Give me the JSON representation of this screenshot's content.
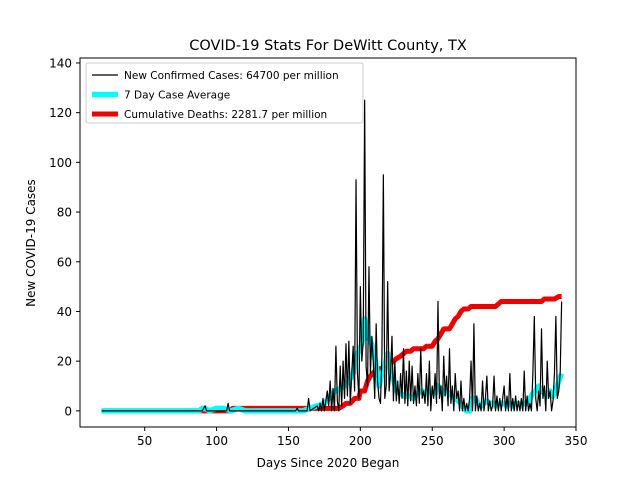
{
  "chart_data": {
    "type": "line",
    "title": "COVID-19 Stats For DeWitt County, TX",
    "xlabel": "Days Since 2020 Began",
    "ylabel": "New COVID-19 Cases",
    "xlim": [
      5,
      350
    ],
    "ylim": [
      -6.5,
      142
    ],
    "x_ticks": [
      50,
      100,
      150,
      200,
      250,
      300,
      350
    ],
    "y_ticks": [
      0,
      20,
      40,
      60,
      80,
      100,
      120,
      140
    ],
    "grid": false,
    "legend_position": "upper-left",
    "series": [
      {
        "name": "New Confirmed Cases: 64700 per million",
        "color": "#000000",
        "points": [
          [
            20,
            0
          ],
          [
            90,
            0
          ],
          [
            92,
            2
          ],
          [
            93,
            0
          ],
          [
            107,
            0
          ],
          [
            108,
            3
          ],
          [
            109,
            0
          ],
          [
            110,
            0
          ],
          [
            155,
            0
          ],
          [
            156,
            1
          ],
          [
            157,
            0
          ],
          [
            163,
            0
          ],
          [
            164,
            5
          ],
          [
            165,
            0
          ],
          [
            170,
            2
          ],
          [
            171,
            0
          ],
          [
            172,
            3
          ],
          [
            173,
            0
          ],
          [
            174,
            5
          ],
          [
            175,
            0
          ],
          [
            177,
            8
          ],
          [
            178,
            2
          ],
          [
            179,
            12
          ],
          [
            180,
            0
          ],
          [
            181,
            9
          ],
          [
            182,
            0
          ],
          [
            183,
            26
          ],
          [
            184,
            4
          ],
          [
            185,
            0
          ],
          [
            186,
            18
          ],
          [
            187,
            2
          ],
          [
            188,
            20
          ],
          [
            189,
            5
          ],
          [
            190,
            27
          ],
          [
            191,
            6
          ],
          [
            192,
            28
          ],
          [
            193,
            3
          ],
          [
            195,
            26
          ],
          [
            196,
            8
          ],
          [
            197,
            93
          ],
          [
            198,
            15
          ],
          [
            199,
            5
          ],
          [
            200,
            50
          ],
          [
            201,
            20
          ],
          [
            202,
            28
          ],
          [
            203,
            125
          ],
          [
            204,
            18
          ],
          [
            205,
            10
          ],
          [
            206,
            58
          ],
          [
            207,
            15
          ],
          [
            208,
            30
          ],
          [
            209,
            20
          ],
          [
            210,
            5
          ],
          [
            211,
            35
          ],
          [
            212,
            12
          ],
          [
            213,
            5
          ],
          [
            214,
            3
          ],
          [
            215,
            22
          ],
          [
            216,
            95
          ],
          [
            217,
            5
          ],
          [
            218,
            10
          ],
          [
            219,
            52
          ],
          [
            220,
            8
          ],
          [
            221,
            15
          ],
          [
            222,
            30
          ],
          [
            223,
            4
          ],
          [
            224,
            20
          ],
          [
            225,
            4
          ],
          [
            226,
            12
          ],
          [
            227,
            3
          ],
          [
            228,
            15
          ],
          [
            229,
            5
          ],
          [
            230,
            25
          ],
          [
            231,
            3
          ],
          [
            232,
            16
          ],
          [
            233,
            2
          ],
          [
            234,
            20
          ],
          [
            235,
            4
          ],
          [
            236,
            18
          ],
          [
            237,
            3
          ],
          [
            238,
            10
          ],
          [
            239,
            2
          ],
          [
            240,
            15
          ],
          [
            241,
            3
          ],
          [
            242,
            25
          ],
          [
            243,
            5
          ],
          [
            244,
            8
          ],
          [
            245,
            3
          ],
          [
            246,
            15
          ],
          [
            247,
            2
          ],
          [
            248,
            20
          ],
          [
            249,
            0
          ],
          [
            250,
            10
          ],
          [
            251,
            5
          ],
          [
            252,
            15
          ],
          [
            253,
            3
          ],
          [
            254,
            44
          ],
          [
            255,
            5
          ],
          [
            256,
            10
          ],
          [
            257,
            0
          ],
          [
            258,
            22
          ],
          [
            259,
            6
          ],
          [
            260,
            14
          ],
          [
            261,
            2
          ],
          [
            262,
            25
          ],
          [
            263,
            3
          ],
          [
            264,
            10
          ],
          [
            265,
            0
          ],
          [
            266,
            15
          ],
          [
            267,
            5
          ],
          [
            268,
            8
          ],
          [
            269,
            0
          ],
          [
            270,
            12
          ],
          [
            271,
            0
          ],
          [
            272,
            5
          ],
          [
            273,
            0
          ],
          [
            274,
            3
          ],
          [
            275,
            0
          ],
          [
            276,
            5
          ],
          [
            277,
            20
          ],
          [
            278,
            0
          ],
          [
            279,
            35
          ],
          [
            280,
            0
          ],
          [
            281,
            6
          ],
          [
            282,
            0
          ],
          [
            283,
            3
          ],
          [
            284,
            0
          ],
          [
            285,
            12
          ],
          [
            286,
            0
          ],
          [
            287,
            5
          ],
          [
            288,
            14
          ],
          [
            289,
            0
          ],
          [
            290,
            4
          ],
          [
            291,
            0
          ],
          [
            292,
            2
          ],
          [
            293,
            14
          ],
          [
            294,
            0
          ],
          [
            295,
            6
          ],
          [
            296,
            0
          ],
          [
            297,
            5
          ],
          [
            298,
            0
          ],
          [
            299,
            5
          ],
          [
            300,
            10
          ],
          [
            301,
            0
          ],
          [
            302,
            6
          ],
          [
            303,
            0
          ],
          [
            304,
            15
          ],
          [
            305,
            0
          ],
          [
            306,
            5
          ],
          [
            307,
            0
          ],
          [
            308,
            6
          ],
          [
            309,
            0
          ],
          [
            310,
            4
          ],
          [
            311,
            0
          ],
          [
            312,
            5
          ],
          [
            313,
            0
          ],
          [
            314,
            16
          ],
          [
            315,
            0
          ],
          [
            316,
            6
          ],
          [
            317,
            0
          ],
          [
            318,
            3
          ],
          [
            319,
            0
          ],
          [
            320,
            15
          ],
          [
            321,
            38
          ],
          [
            322,
            5
          ],
          [
            323,
            0
          ],
          [
            324,
            8
          ],
          [
            325,
            2
          ],
          [
            326,
            33
          ],
          [
            327,
            5
          ],
          [
            328,
            10
          ],
          [
            329,
            0
          ],
          [
            330,
            20
          ],
          [
            331,
            5
          ],
          [
            332,
            8
          ],
          [
            333,
            0
          ],
          [
            334,
            4
          ],
          [
            335,
            15
          ],
          [
            336,
            38
          ],
          [
            337,
            5
          ],
          [
            338,
            8
          ],
          [
            339,
            15
          ],
          [
            340,
            44
          ]
        ]
      },
      {
        "name": "7 Day Case Average",
        "color": "#00ffff",
        "points": [
          [
            20,
            0
          ],
          [
            88,
            0
          ],
          [
            90,
            1
          ],
          [
            92,
            1
          ],
          [
            95,
            0
          ],
          [
            100,
            1
          ],
          [
            105,
            1
          ],
          [
            110,
            0
          ],
          [
            115,
            1
          ],
          [
            120,
            0
          ],
          [
            130,
            0
          ],
          [
            140,
            0
          ],
          [
            150,
            0
          ],
          [
            160,
            0
          ],
          [
            165,
            1
          ],
          [
            170,
            2
          ],
          [
            175,
            3
          ],
          [
            178,
            5
          ],
          [
            180,
            7
          ],
          [
            183,
            8
          ],
          [
            186,
            9
          ],
          [
            189,
            10
          ],
          [
            192,
            12
          ],
          [
            195,
            15
          ],
          [
            197,
            22
          ],
          [
            199,
            24
          ],
          [
            201,
            27
          ],
          [
            203,
            37
          ],
          [
            205,
            30
          ],
          [
            207,
            28
          ],
          [
            209,
            25
          ],
          [
            211,
            18
          ],
          [
            213,
            10
          ],
          [
            215,
            15
          ],
          [
            217,
            18
          ],
          [
            219,
            23
          ],
          [
            221,
            15
          ],
          [
            223,
            13
          ],
          [
            225,
            8
          ],
          [
            228,
            7
          ],
          [
            231,
            6
          ],
          [
            234,
            6
          ],
          [
            237,
            5
          ],
          [
            240,
            7
          ],
          [
            243,
            8
          ],
          [
            246,
            7
          ],
          [
            249,
            8
          ],
          [
            252,
            7
          ],
          [
            254,
            10
          ],
          [
            256,
            9
          ],
          [
            258,
            7
          ],
          [
            260,
            8
          ],
          [
            262,
            7
          ],
          [
            264,
            6
          ],
          [
            266,
            5
          ],
          [
            268,
            4
          ],
          [
            270,
            3
          ],
          [
            272,
            1
          ],
          [
            274,
            0
          ],
          [
            276,
            0
          ],
          [
            278,
            5
          ],
          [
            280,
            5
          ],
          [
            282,
            3
          ],
          [
            284,
            2
          ],
          [
            286,
            3
          ],
          [
            288,
            4
          ],
          [
            290,
            3
          ],
          [
            292,
            3
          ],
          [
            294,
            2
          ],
          [
            296,
            3
          ],
          [
            298,
            3
          ],
          [
            300,
            3
          ],
          [
            302,
            2
          ],
          [
            304,
            3
          ],
          [
            306,
            2
          ],
          [
            308,
            3
          ],
          [
            310,
            3
          ],
          [
            312,
            2
          ],
          [
            314,
            3
          ],
          [
            316,
            3
          ],
          [
            318,
            5
          ],
          [
            320,
            7
          ],
          [
            322,
            8
          ],
          [
            324,
            10
          ],
          [
            326,
            8
          ],
          [
            328,
            7
          ],
          [
            330,
            6
          ],
          [
            332,
            8
          ],
          [
            334,
            6
          ],
          [
            336,
            8
          ],
          [
            338,
            12
          ],
          [
            340,
            15
          ]
        ]
      },
      {
        "name": "Cumulative Deaths: 2281.7 per million",
        "color": "#ee0000",
        "points": [
          [
            20,
            0
          ],
          [
            110,
            0
          ],
          [
            111,
            1
          ],
          [
            185,
            1
          ],
          [
            188,
            2
          ],
          [
            190,
            3
          ],
          [
            193,
            3
          ],
          [
            196,
            5
          ],
          [
            199,
            5
          ],
          [
            200,
            8
          ],
          [
            203,
            8
          ],
          [
            205,
            12
          ],
          [
            207,
            14
          ],
          [
            210,
            16
          ],
          [
            212,
            16
          ],
          [
            214,
            17
          ],
          [
            218,
            18
          ],
          [
            221,
            19
          ],
          [
            223,
            20
          ],
          [
            225,
            21
          ],
          [
            228,
            22
          ],
          [
            230,
            23
          ],
          [
            232,
            24
          ],
          [
            235,
            24
          ],
          [
            237,
            25
          ],
          [
            244,
            25
          ],
          [
            246,
            26
          ],
          [
            250,
            26
          ],
          [
            252,
            28
          ],
          [
            254,
            29
          ],
          [
            256,
            31
          ],
          [
            258,
            33
          ],
          [
            262,
            33
          ],
          [
            264,
            35
          ],
          [
            266,
            37
          ],
          [
            268,
            38
          ],
          [
            270,
            40
          ],
          [
            272,
            41
          ],
          [
            275,
            41
          ],
          [
            277,
            42
          ],
          [
            294,
            42
          ],
          [
            296,
            43
          ],
          [
            298,
            44
          ],
          [
            320,
            44
          ],
          [
            326,
            44
          ],
          [
            328,
            45
          ],
          [
            335,
            45
          ],
          [
            338,
            46
          ],
          [
            340,
            46
          ]
        ]
      }
    ]
  }
}
